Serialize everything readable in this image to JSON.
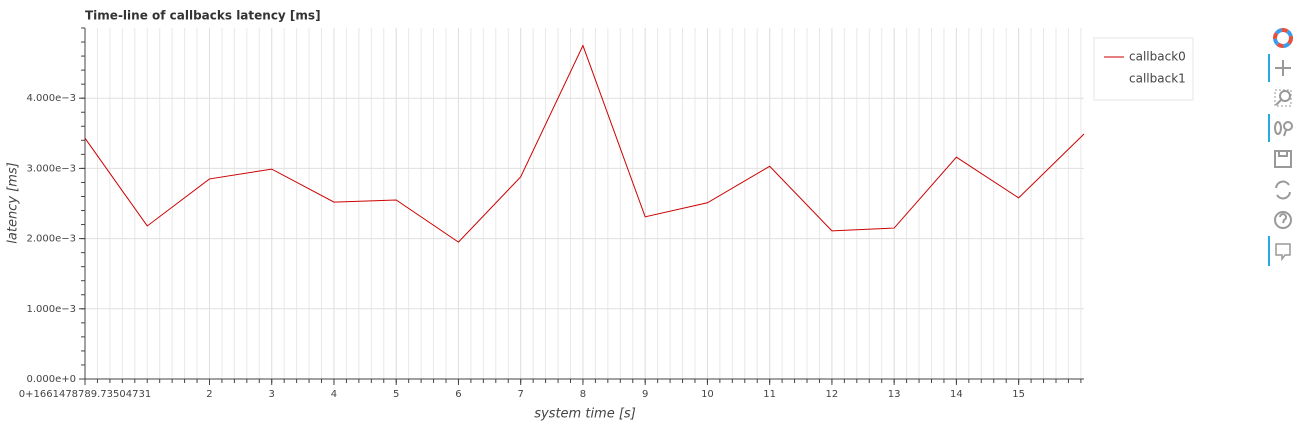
{
  "chart_data": {
    "type": "line",
    "title": "Time-line of callbacks latency [ms]",
    "xlabel": "system time [s]",
    "ylabel": "latency [ms]",
    "x": [
      0,
      1,
      2,
      3,
      4,
      5,
      6,
      7,
      8,
      9,
      10,
      11,
      12,
      13,
      14,
      15,
      16.05
    ],
    "series": [
      {
        "name": "callback0",
        "color": "#cc0000",
        "values": [
          0.00343,
          0.00218,
          0.00285,
          0.00299,
          0.00252,
          0.00255,
          0.00195,
          0.00288,
          0.00475,
          0.00231,
          0.00251,
          0.00303,
          0.00211,
          0.00215,
          0.00316,
          0.00258,
          0.00349
        ]
      },
      {
        "name": "callback1",
        "values": [
          null,
          null,
          null,
          null,
          null,
          null,
          null,
          null,
          null,
          null,
          null,
          null,
          null,
          null,
          null,
          null,
          null
        ]
      }
    ],
    "xlim": [
      0,
      16.05
    ],
    "ylim": [
      0,
      0.005
    ],
    "xticks": [
      {
        "value": 0,
        "label": "0+1661478789.73504731"
      },
      2,
      3,
      4,
      5,
      6,
      7,
      8,
      9,
      10,
      11,
      12,
      13,
      14,
      15
    ],
    "yticks": [
      {
        "value": 0,
        "label": "0.000e+0"
      },
      {
        "value": 0.001,
        "label": "1.000e−3"
      },
      {
        "value": 0.002,
        "label": "2.000e−3"
      },
      {
        "value": 0.003,
        "label": "3.000e−3"
      },
      {
        "value": 0.004,
        "label": "4.000e−3"
      }
    ],
    "minor_ticks": 5,
    "grid": true,
    "legend": "top-right"
  }
}
